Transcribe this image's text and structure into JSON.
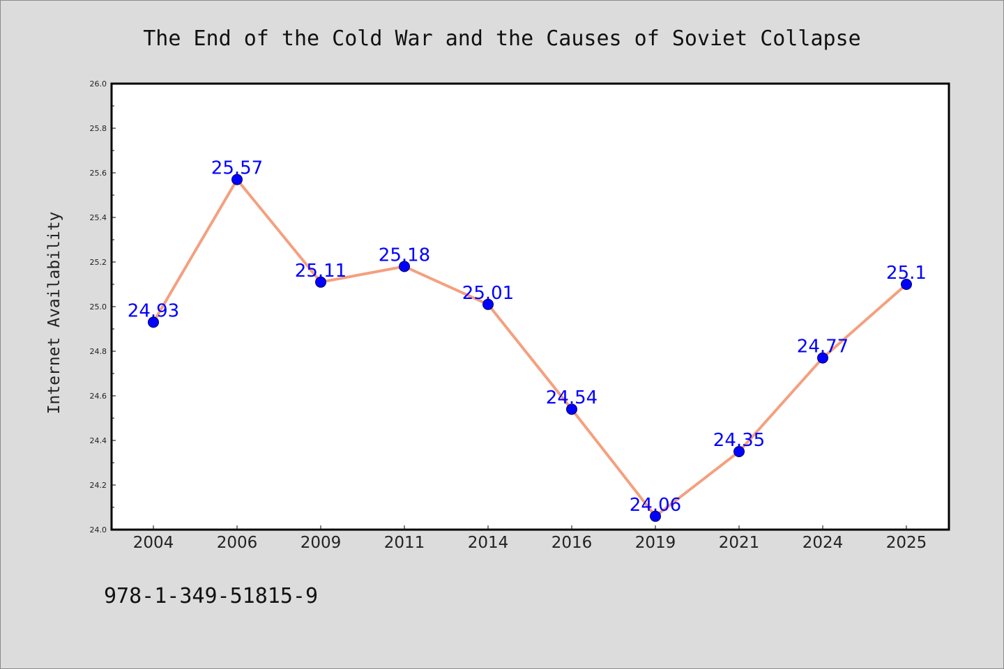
{
  "chart_data": {
    "type": "line",
    "title": "The End of the Cold War and the Causes of Soviet Collapse",
    "xlabel": "",
    "ylabel": "Internet Availability",
    "categories": [
      "2004",
      "2006",
      "2009",
      "2011",
      "2014",
      "2016",
      "2019",
      "2021",
      "2024",
      "2025"
    ],
    "values": [
      24.93,
      25.57,
      25.11,
      25.18,
      25.01,
      24.54,
      24.06,
      24.35,
      24.77,
      25.1
    ],
    "data_labels": [
      "24.93",
      "25.57",
      "25.11",
      "25.18",
      "25.01",
      "24.54",
      "24.06",
      "24.35",
      "24.77",
      "25.1"
    ],
    "ylim": [
      24.0,
      26.0
    ],
    "yticks": [
      "24.0",
      "24.2",
      "24.4",
      "24.6",
      "24.8",
      "25.0",
      "25.2",
      "25.4",
      "25.6",
      "25.8",
      "26.0"
    ],
    "grid": false,
    "legend": "none",
    "colors": {
      "line": "#f4a07f",
      "marker": "#0000ff",
      "label": "#0000ff",
      "background": "#dcdcdc",
      "plot_background": "#ffffff"
    }
  },
  "footer": {
    "isbn": "978-1-349-51815-9"
  }
}
